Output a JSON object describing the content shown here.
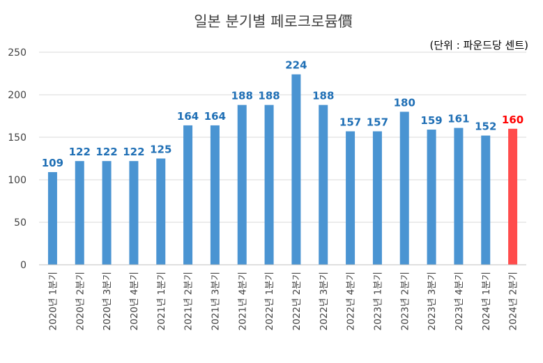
{
  "chart_data": {
    "type": "bar",
    "title": "일본 분기별 페로크로뮴價",
    "unit_note": "(단위 : 파운드당 센트)",
    "categories": [
      "2020년 1분기",
      "2020년 2분기",
      "2020년 3분기",
      "2020년 4분기",
      "2021년 1분기",
      "2021년 2분기",
      "2021년 3분기",
      "2021년 4분기",
      "2022년 1분기",
      "2022년 2분기",
      "2022년 3분기",
      "2022년 4분기",
      "2023년 1분기",
      "2023년 2분기",
      "2023년 3분기",
      "2023년 4분기",
      "2024년 1분기",
      "2024년 2분기"
    ],
    "values": [
      109,
      122,
      122,
      122,
      125,
      164,
      164,
      188,
      188,
      224,
      188,
      157,
      157,
      180,
      159,
      161,
      152,
      160
    ],
    "ylim": [
      0,
      250
    ],
    "yticks": [
      0,
      50,
      100,
      150,
      200,
      250
    ],
    "grid": true,
    "colors": {
      "bar": "#4A94D2",
      "highlight_bar": "#FF4B4B",
      "label": "#1F6FB5",
      "highlight_label": "#FF0000",
      "grid": "#D9D9D9"
    },
    "highlight_index": 17
  }
}
